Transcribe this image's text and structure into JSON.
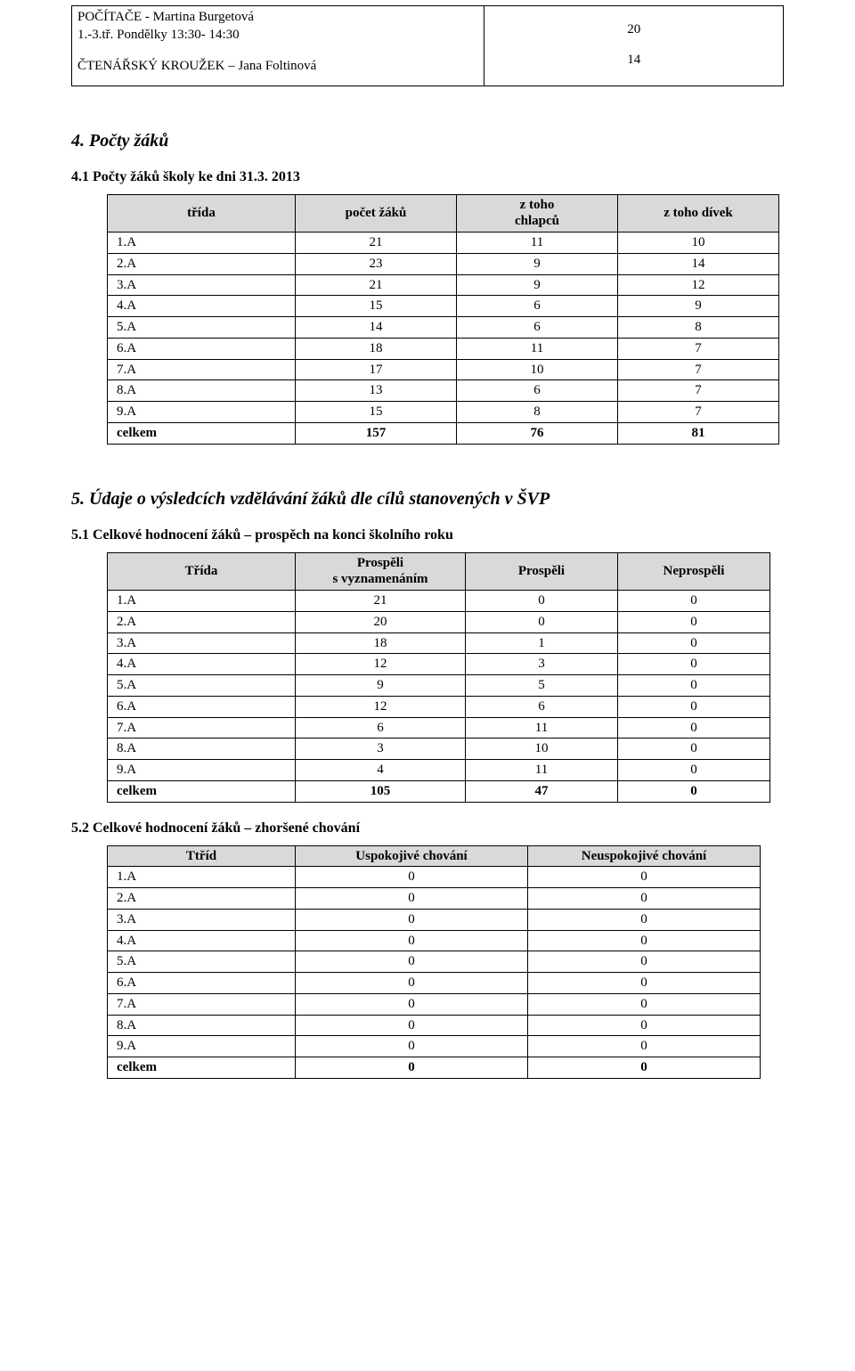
{
  "top_box": {
    "left_line1": "POČÍTAČE -  Martina Burgetová",
    "left_line2": "1.-3.tř. Pondělky 13:30- 14:30",
    "left_line3": "ČTENÁŘSKÝ KROUŽEK – Jana Foltinová",
    "right_num1": "20",
    "right_num2": "14"
  },
  "section4": {
    "title": "4. Počty žáků",
    "sub41_title": "4.1 Počty žáků školy ke dni 31.3. 2013",
    "table41": {
      "headers": {
        "c1": "třída",
        "c2": "počet žáků",
        "c3_l1": "z toho",
        "c3_l2": "chlapců",
        "c4": "z toho dívek"
      },
      "rows": [
        {
          "c1": "1.A",
          "c2": "21",
          "c3": "11",
          "c4": "10"
        },
        {
          "c1": "2.A",
          "c2": "23",
          "c3": "9",
          "c4": "14"
        },
        {
          "c1": "3.A",
          "c2": "21",
          "c3": "9",
          "c4": "12"
        },
        {
          "c1": "4.A",
          "c2": "15",
          "c3": "6",
          "c4": "9"
        },
        {
          "c1": "5.A",
          "c2": "14",
          "c3": "6",
          "c4": "8"
        },
        {
          "c1": "6.A",
          "c2": "18",
          "c3": "11",
          "c4": "7"
        },
        {
          "c1": "7.A",
          "c2": "17",
          "c3": "10",
          "c4": "7"
        },
        {
          "c1": "8.A",
          "c2": "13",
          "c3": "6",
          "c4": "7"
        },
        {
          "c1": "9.A",
          "c2": "15",
          "c3": "8",
          "c4": "7"
        }
      ],
      "total": {
        "c1": "celkem",
        "c2": "157",
        "c3": "76",
        "c4": "81"
      }
    }
  },
  "section5": {
    "title": "5. Údaje o výsledcích vzdělávání žáků dle cílů stanovených v ŠVP",
    "sub51_title": "5.1 Celkové hodnocení žáků – prospěch na konci školního roku",
    "table51": {
      "headers": {
        "c1": "Třída",
        "c2_l1": "Prospěli",
        "c2_l2": "s vyznamenáním",
        "c3": "Prospěli",
        "c4": "Neprospěli"
      },
      "rows": [
        {
          "c1": "1.A",
          "c2": "21",
          "c3": "0",
          "c4": "0"
        },
        {
          "c1": "2.A",
          "c2": "20",
          "c3": "0",
          "c4": "0"
        },
        {
          "c1": "3.A",
          "c2": "18",
          "c3": "1",
          "c4": "0"
        },
        {
          "c1": "4.A",
          "c2": "12",
          "c3": "3",
          "c4": "0"
        },
        {
          "c1": "5.A",
          "c2": "9",
          "c3": "5",
          "c4": "0"
        },
        {
          "c1": "6.A",
          "c2": "12",
          "c3": "6",
          "c4": "0"
        },
        {
          "c1": "7.A",
          "c2": "6",
          "c3": "11",
          "c4": "0"
        },
        {
          "c1": "8.A",
          "c2": "3",
          "c3": "10",
          "c4": "0"
        },
        {
          "c1": "9.A",
          "c2": "4",
          "c3": "11",
          "c4": "0"
        }
      ],
      "total": {
        "c1": "celkem",
        "c2": "105",
        "c3": "47",
        "c4": "0"
      }
    },
    "sub52_title": "5.2 Celkové hodnocení žáků – zhoršené chování",
    "table52": {
      "headers": {
        "c1": "Ttříd",
        "c2": "Uspokojivé chování",
        "c3": "Neuspokojivé chování"
      },
      "rows": [
        {
          "c1": "1.A",
          "c2": "0",
          "c3": "0"
        },
        {
          "c1": "2.A",
          "c2": "0",
          "c3": "0"
        },
        {
          "c1": "3.A",
          "c2": "0",
          "c3": "0"
        },
        {
          "c1": "4.A",
          "c2": "0",
          "c3": "0"
        },
        {
          "c1": "5.A",
          "c2": "0",
          "c3": "0"
        },
        {
          "c1": "6.A",
          "c2": "0",
          "c3": "0"
        },
        {
          "c1": "7.A",
          "c2": "0",
          "c3": "0"
        },
        {
          "c1": "8.A",
          "c2": "0",
          "c3": "0"
        },
        {
          "c1": "9.A",
          "c2": "0",
          "c3": "0"
        }
      ],
      "total": {
        "c1": "celkem",
        "c2": "0",
        "c3": "0"
      }
    }
  }
}
